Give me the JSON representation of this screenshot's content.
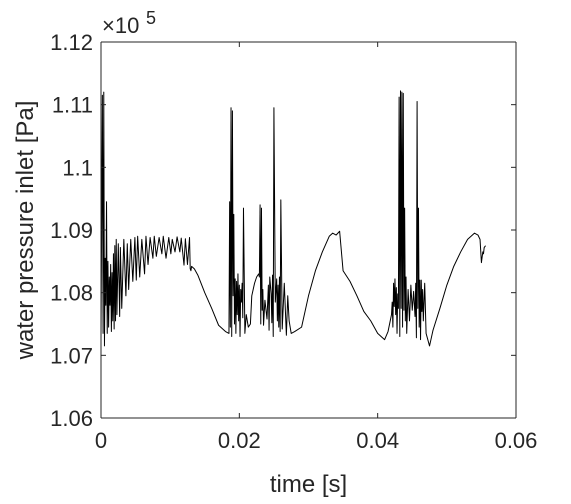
{
  "chart_data": {
    "type": "line",
    "title": "",
    "xlabel": "time [s]",
    "ylabel": "water pressure inlet [Pa]",
    "y_multiplier_label": "×10",
    "y_multiplier_exponent": "5",
    "xlim": [
      0,
      0.06
    ],
    "ylim": [
      1.06,
      1.12
    ],
    "xticks": [
      0,
      0.02,
      0.04,
      0.06
    ],
    "xtick_labels": [
      "0",
      "0.02",
      "0.04",
      "0.06"
    ],
    "yticks": [
      1.06,
      1.07,
      1.08,
      1.09,
      1.1,
      1.11,
      1.12
    ],
    "ytick_labels": [
      "1.06",
      "1.07",
      "1.08",
      "1.09",
      "1.1",
      "1.11",
      "1.12"
    ],
    "grid": false,
    "legend": "none",
    "colors": {
      "line": "#000000",
      "axes": "#262626"
    },
    "series": [
      {
        "x": [
          0,
          0.0002,
          0.0003,
          0.0004,
          0.0005,
          0.0006,
          0.0007,
          0.0008,
          0.0009,
          0.001,
          0.0011,
          0.0012,
          0.0013,
          0.0014,
          0.0015,
          0.0016,
          0.0017,
          0.0018,
          0.0019,
          0.002,
          0.0021,
          0.0022,
          0.0023,
          0.0025,
          0.0027,
          0.0028,
          0.003,
          0.0033,
          0.0036,
          0.0038,
          0.004,
          0.0043,
          0.0046,
          0.0049,
          0.0051,
          0.0053,
          0.0056,
          0.0059,
          0.0063,
          0.0065,
          0.0068,
          0.0071,
          0.0075,
          0.0077,
          0.008,
          0.0084,
          0.0088,
          0.009,
          0.0094,
          0.0098,
          0.0101,
          0.0103,
          0.0107,
          0.011,
          0.0114,
          0.0116,
          0.012,
          0.0122,
          0.0125,
          0.0128,
          0.0129,
          0.013,
          0.0131,
          0.0135,
          0.014,
          0.015,
          0.016,
          0.017,
          0.018,
          0.0185,
          0.0186,
          0.0187,
          0.0188,
          0.0189,
          0.019,
          0.0191,
          0.0192,
          0.0193,
          0.0194,
          0.0195,
          0.0196,
          0.0197,
          0.0198,
          0.0199,
          0.02,
          0.0201,
          0.0202,
          0.0203,
          0.0204,
          0.0205,
          0.0206,
          0.0208,
          0.021,
          0.0213,
          0.0216,
          0.0218,
          0.022,
          0.0222,
          0.0225,
          0.0228,
          0.0229,
          0.023,
          0.0231,
          0.0232,
          0.0233,
          0.0234,
          0.0235,
          0.0237,
          0.024,
          0.0242,
          0.0243,
          0.0244,
          0.0246,
          0.0247,
          0.0248,
          0.0249,
          0.025,
          0.0252,
          0.0254,
          0.0255,
          0.0256,
          0.0257,
          0.0258,
          0.0259,
          0.026,
          0.0262,
          0.0265,
          0.0268,
          0.027,
          0.0272,
          0.0275,
          0.028,
          0.029,
          0.03,
          0.031,
          0.032,
          0.033,
          0.0335,
          0.034,
          0.0345,
          0.035,
          0.036,
          0.037,
          0.038,
          0.039,
          0.04,
          0.041,
          0.0415,
          0.042,
          0.0421,
          0.0422,
          0.0423,
          0.0424,
          0.0425,
          0.0426,
          0.0427,
          0.0428,
          0.0429,
          0.043,
          0.0431,
          0.0432,
          0.0433,
          0.0434,
          0.0435,
          0.0436,
          0.0437,
          0.0438,
          0.0439,
          0.044,
          0.0441,
          0.0442,
          0.0444,
          0.0446,
          0.0448,
          0.045,
          0.0452,
          0.0454,
          0.0455,
          0.0456,
          0.0457,
          0.0458,
          0.0459,
          0.046,
          0.0461,
          0.0462,
          0.0463,
          0.0464,
          0.0465,
          0.0466,
          0.0468,
          0.047,
          0.0475,
          0.048,
          0.049,
          0.05,
          0.051,
          0.052,
          0.053,
          0.054,
          0.0545,
          0.0548,
          0.055,
          0.0552,
          0.0553,
          0.0554,
          0.0556
        ],
        "y": [
          1.0725,
          1.1115,
          1.0735,
          1.112,
          1.0715,
          1.0855,
          1.078,
          1.0945,
          1.0735,
          1.085,
          1.0745,
          1.0825,
          1.078,
          1.0845,
          1.0738,
          1.0832,
          1.0755,
          1.0862,
          1.0742,
          1.0875,
          1.0755,
          1.0885,
          1.0765,
          1.0878,
          1.0762,
          1.0872,
          1.0775,
          1.0885,
          1.0795,
          1.0878,
          1.0805,
          1.0885,
          1.0818,
          1.0888,
          1.082,
          1.089,
          1.0825,
          1.0885,
          1.083,
          1.089,
          1.0845,
          1.0888,
          1.0855,
          1.089,
          1.0858,
          1.0888,
          1.0862,
          1.089,
          1.0855,
          1.0888,
          1.0862,
          1.0885,
          1.0865,
          1.0889,
          1.0865,
          1.0887,
          1.0844,
          1.0886,
          1.0845,
          1.0888,
          1.0838,
          1.0835,
          1.0842,
          1.0838,
          1.0828,
          1.08,
          1.0775,
          1.0748,
          1.0738,
          1.0735,
          1.0945,
          1.0745,
          1.1095,
          1.073,
          1.109,
          1.0795,
          1.0925,
          1.075,
          1.0822,
          1.0735,
          1.0818,
          1.0765,
          1.083,
          1.0755,
          1.0812,
          1.073,
          1.0805,
          1.0785,
          1.0815,
          1.076,
          1.0935,
          1.0735,
          1.0765,
          1.0745,
          1.075,
          1.0795,
          1.0805,
          1.0815,
          1.0825,
          1.083,
          1.0825,
          1.094,
          1.075,
          1.0935,
          1.0772,
          1.0805,
          1.0748,
          1.0788,
          1.0758,
          1.0812,
          1.074,
          1.0825,
          1.0798,
          1.0752,
          1.0828,
          1.073,
          1.1095,
          1.0785,
          1.0822,
          1.0755,
          1.0812,
          1.0745,
          1.0825,
          1.0738,
          1.0948,
          1.0742,
          1.0815,
          1.0732,
          1.0795,
          1.0755,
          1.0735,
          1.0738,
          1.0745,
          1.0795,
          1.0835,
          1.0865,
          1.089,
          1.0895,
          1.0892,
          1.0898,
          1.0835,
          1.0818,
          1.0795,
          1.077,
          1.0755,
          1.0735,
          1.0725,
          1.0738,
          1.0765,
          1.0785,
          1.0745,
          1.0815,
          1.0778,
          1.0822,
          1.0765,
          1.0808,
          1.0735,
          1.0798,
          1.0775,
          1.1112,
          1.073,
          1.1122,
          1.0775,
          1.112,
          1.0745,
          1.1118,
          1.0772,
          1.0935,
          1.0755,
          1.0825,
          1.0735,
          1.0805,
          1.0755,
          1.0812,
          1.0772,
          1.0802,
          1.0762,
          1.0815,
          1.0728,
          1.1105,
          1.0775,
          1.0935,
          1.0745,
          1.082,
          1.0725,
          1.082,
          1.077,
          1.0805,
          1.0755,
          1.0815,
          1.0735,
          1.0715,
          1.074,
          1.0775,
          1.0812,
          1.0842,
          1.0865,
          1.0885,
          1.0895,
          1.0892,
          1.0885,
          1.0848,
          1.0865,
          1.0862,
          1.0872,
          1.0875
        ]
      }
    ]
  }
}
